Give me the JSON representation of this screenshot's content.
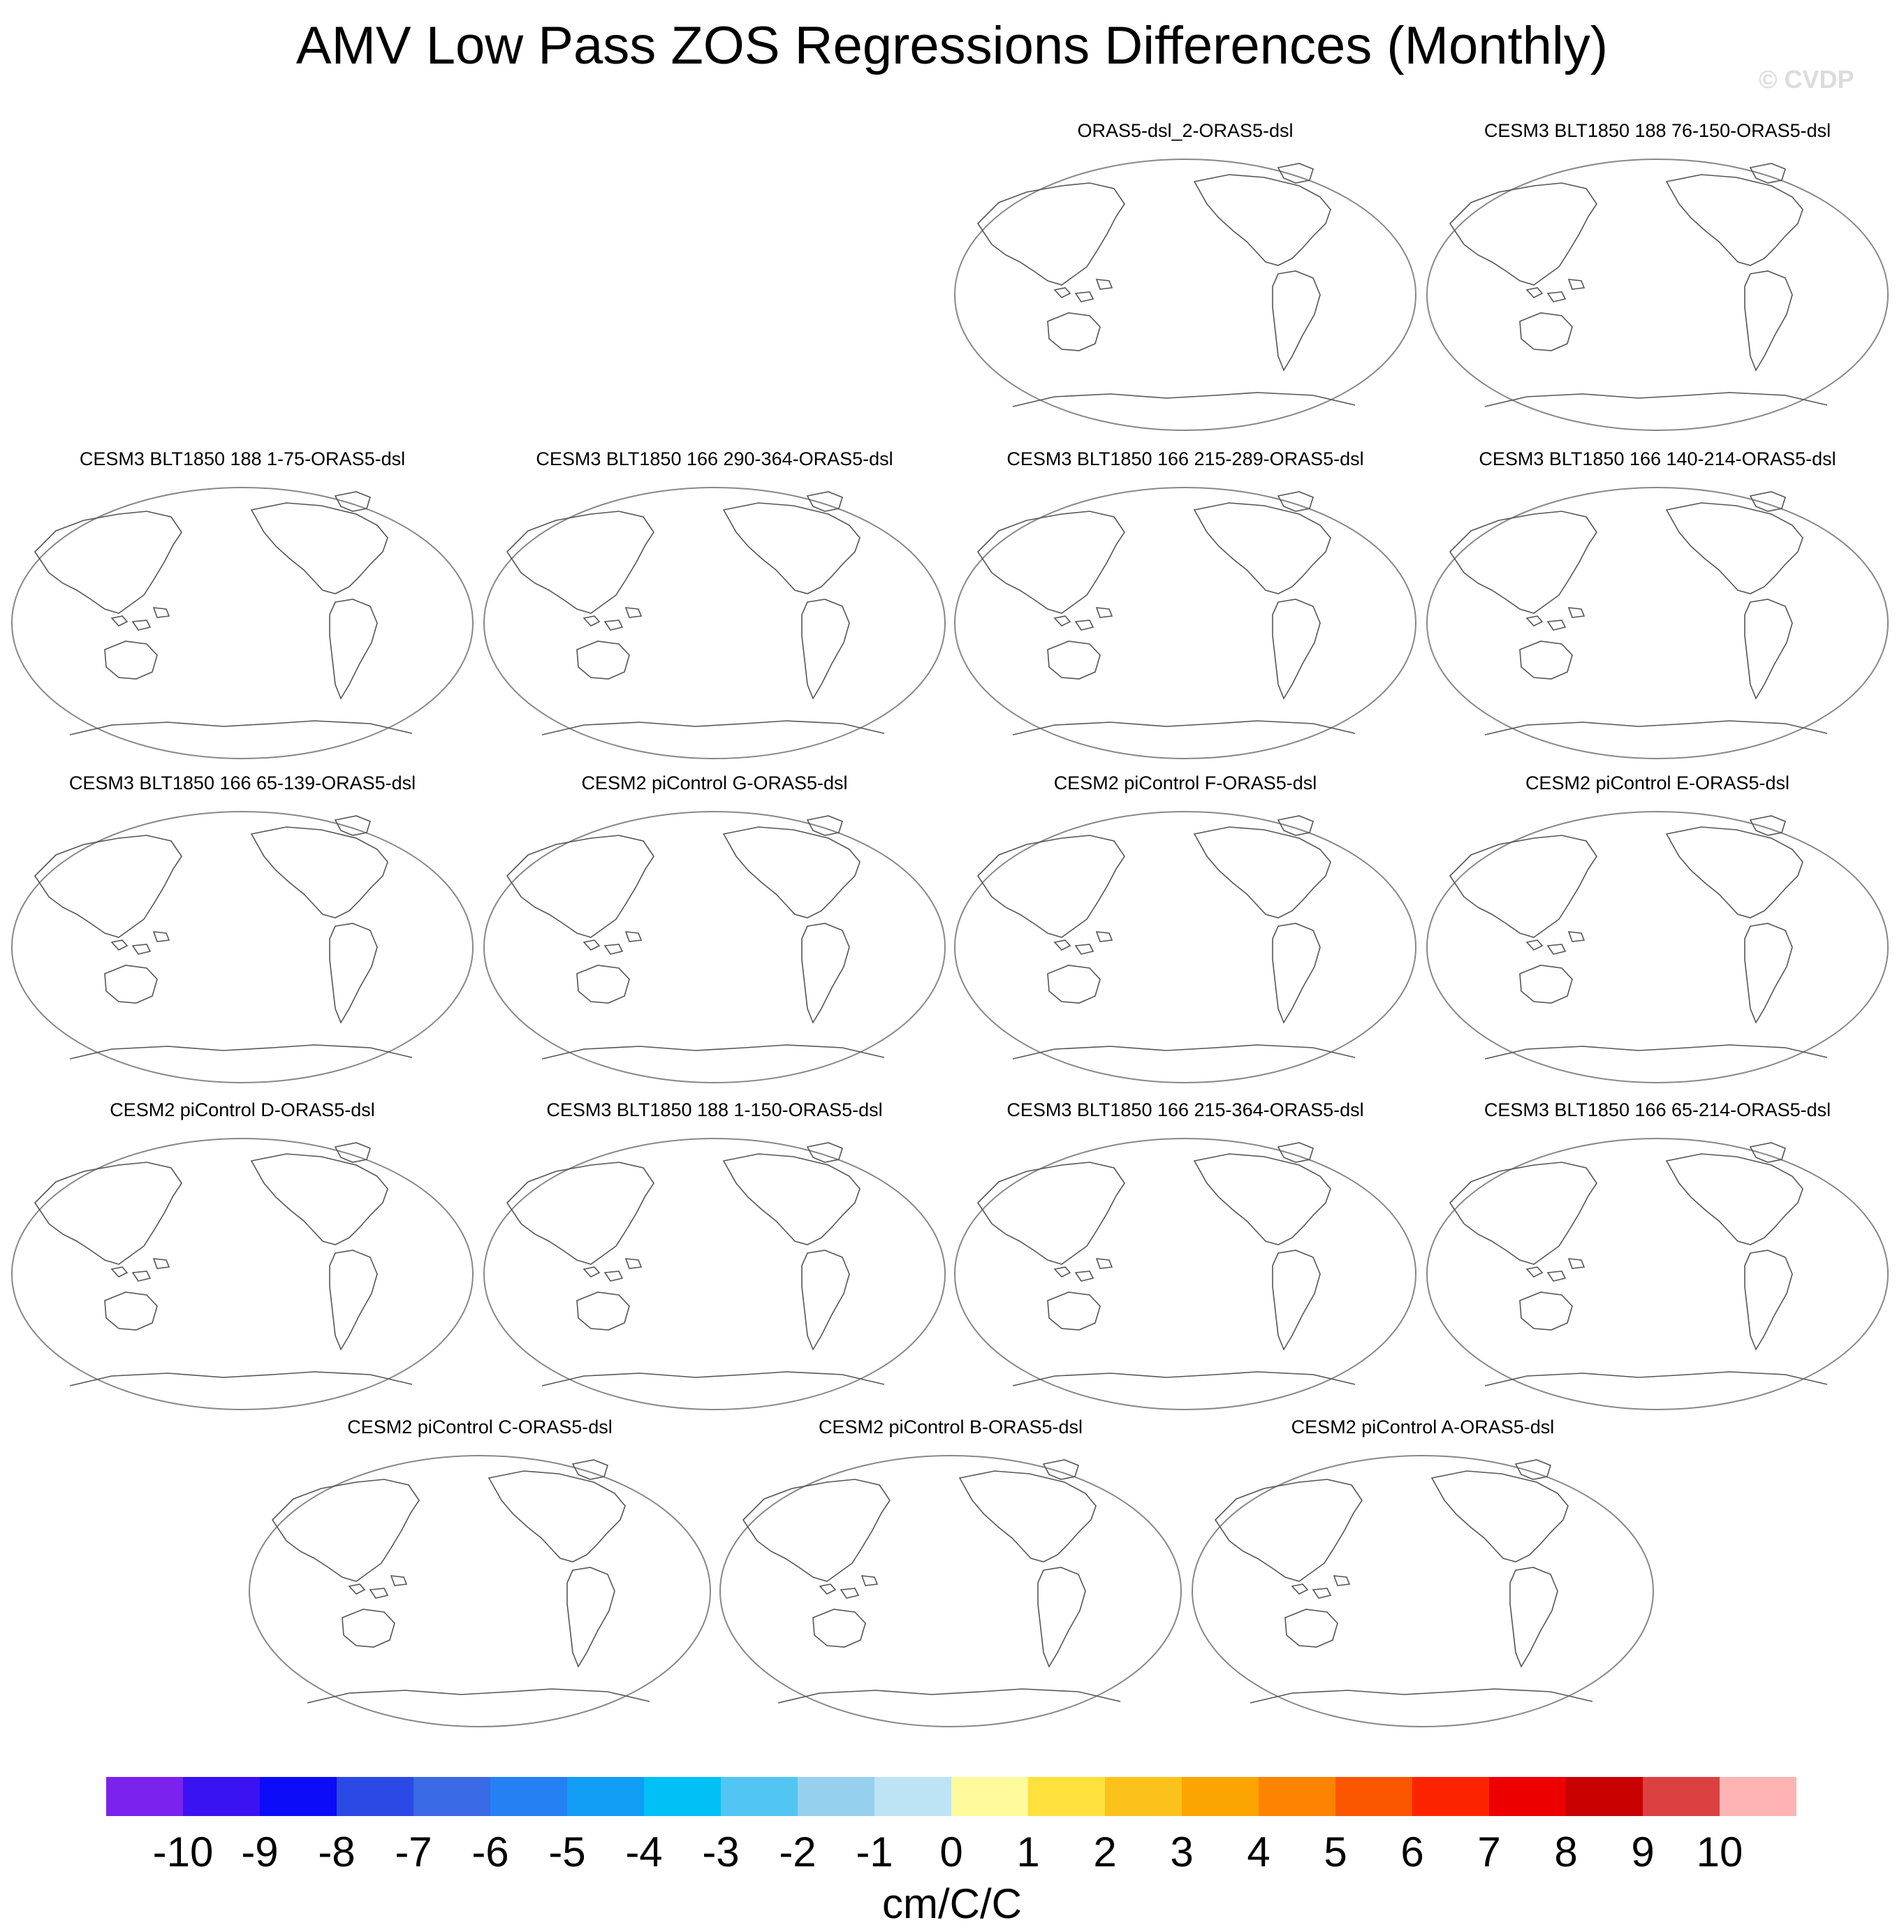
{
  "title": "AMV Low Pass ZOS Regressions Differences (Monthly)",
  "watermark": "© CVDP",
  "panels": [
    {
      "title": "ORAS5-dsl_2-ORAS5-dsl"
    },
    {
      "title": "CESM3 BLT1850 188 76-150-ORAS5-dsl"
    },
    {
      "title": "CESM3 BLT1850 188 1-75-ORAS5-dsl"
    },
    {
      "title": "CESM3 BLT1850 166 290-364-ORAS5-dsl"
    },
    {
      "title": "CESM3 BLT1850 166 215-289-ORAS5-dsl"
    },
    {
      "title": "CESM3 BLT1850 166 140-214-ORAS5-dsl"
    },
    {
      "title": "CESM3 BLT1850 166 65-139-ORAS5-dsl"
    },
    {
      "title": "CESM2 piControl G-ORAS5-dsl"
    },
    {
      "title": "CESM2 piControl F-ORAS5-dsl"
    },
    {
      "title": "CESM2 piControl E-ORAS5-dsl"
    },
    {
      "title": "CESM2 piControl D-ORAS5-dsl"
    },
    {
      "title": "CESM3 BLT1850 188 1-150-ORAS5-dsl"
    },
    {
      "title": "CESM3 BLT1850 166 215-364-ORAS5-dsl"
    },
    {
      "title": "CESM3 BLT1850 166 65-214-ORAS5-dsl"
    },
    {
      "title": "CESM2 piControl C-ORAS5-dsl"
    },
    {
      "title": "CESM2 piControl B-ORAS5-dsl"
    },
    {
      "title": "CESM2 piControl A-ORAS5-dsl"
    }
  ],
  "colorbar": {
    "units": "cm/C/C",
    "ticks": [
      "-10",
      "-9",
      "-8",
      "-7",
      "-6",
      "-5",
      "-4",
      "-3",
      "-2",
      "-1",
      "0",
      "1",
      "2",
      "3",
      "4",
      "5",
      "6",
      "7",
      "8",
      "9",
      "10"
    ],
    "colors": [
      "#7b22ee",
      "#3b12f2",
      "#0c0cf8",
      "#2b49e4",
      "#3a6ae6",
      "#2580f4",
      "#119cf6",
      "#00c0f6",
      "#52c6f2",
      "#96d0ee",
      "#bde3f4",
      "#fffa9c",
      "#ffe03c",
      "#fcc21c",
      "#fca400",
      "#fc8400",
      "#fc5600",
      "#fc2400",
      "#ec0000",
      "#c80000",
      "#dc4040",
      "#ffb4b4"
    ]
  },
  "map_style": {
    "coast_color": "#555555",
    "frame_color": "#888888"
  }
}
